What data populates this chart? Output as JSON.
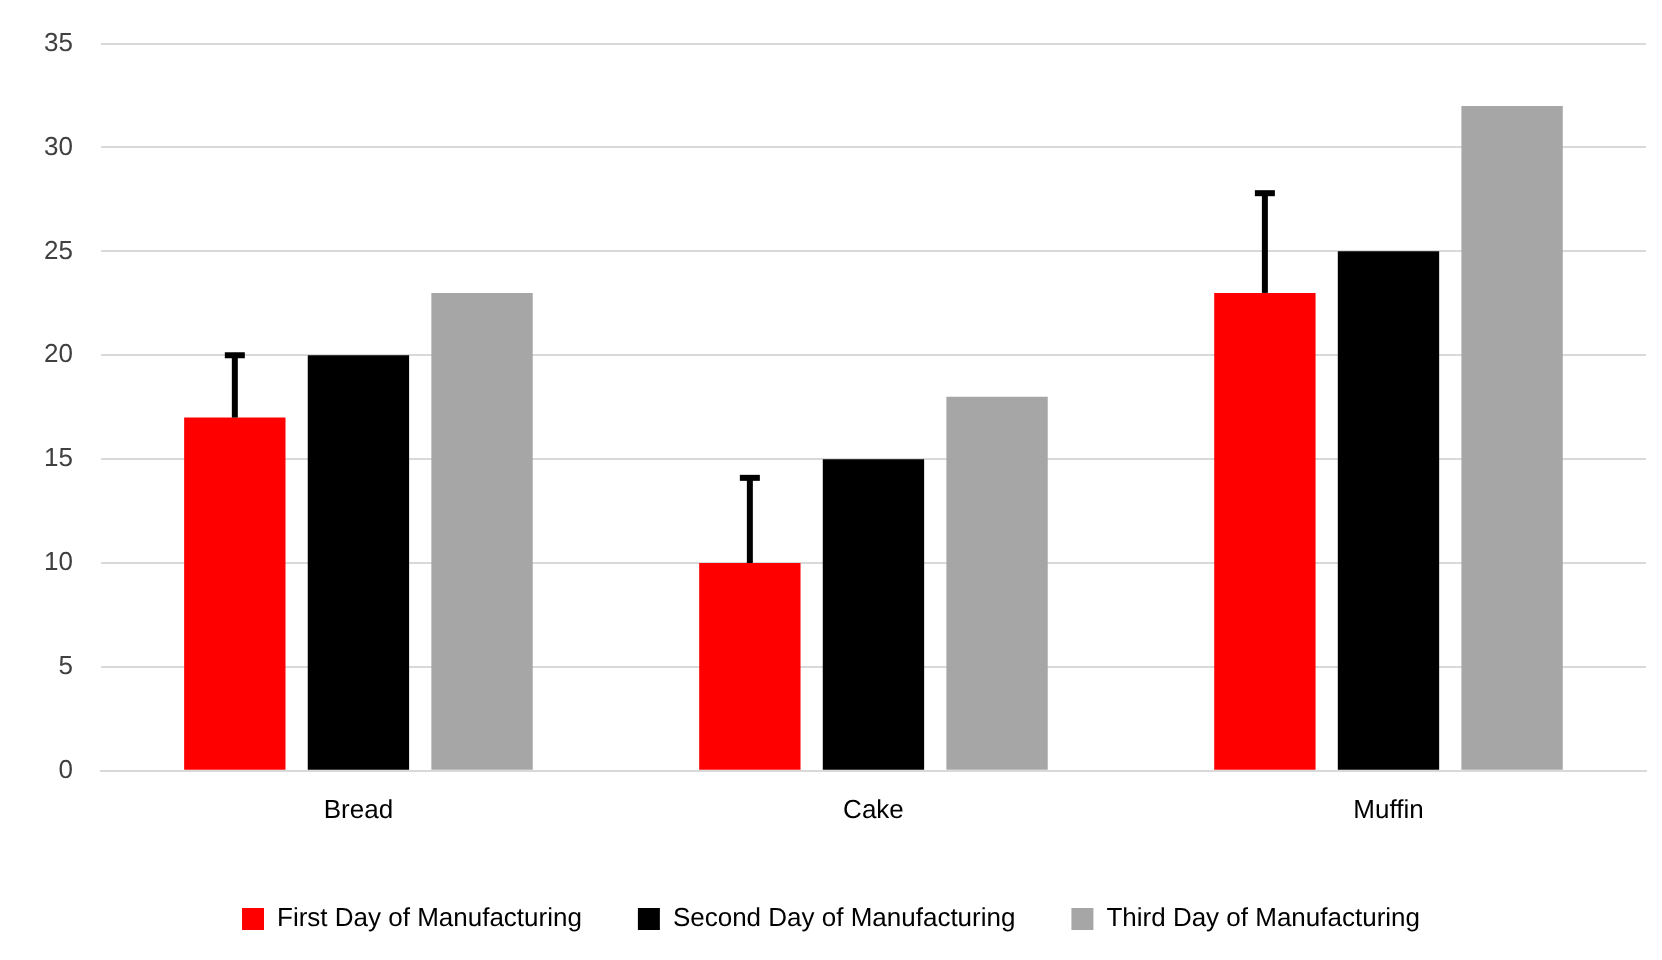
{
  "chart_data": {
    "type": "bar",
    "categories": [
      "Bread",
      "Cake",
      "Muffin"
    ],
    "series": [
      {
        "name": "First Day of Manufacturing",
        "color": "#ff0000",
        "values": [
          17,
          10,
          23
        ],
        "errors": [
          [
            17,
            20
          ],
          [
            10,
            14.1
          ],
          [
            23,
            27.8
          ]
        ]
      },
      {
        "name": "Second Day of Manufacturing",
        "color": "#000000",
        "values": [
          20,
          15,
          25
        ]
      },
      {
        "name": "Third Day of Manufacturing",
        "color": "#a6a6a6",
        "values": [
          23,
          18,
          32
        ]
      }
    ],
    "ylim": [
      0,
      35
    ],
    "yticks": [
      0,
      5,
      10,
      15,
      20,
      25,
      30,
      35
    ],
    "grid": "y",
    "legend": "bottom"
  }
}
